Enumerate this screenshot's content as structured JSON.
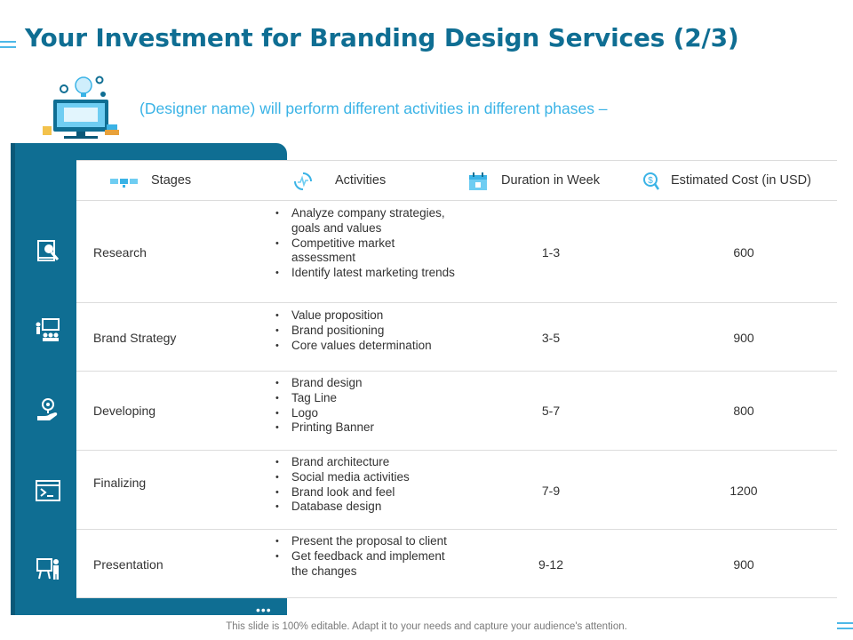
{
  "title": "Your Investment for Branding Design Services (2/3)",
  "subtitle": "(Designer name) will perform different activities in different phases –",
  "colors": {
    "primary": "#0f6e93",
    "accent": "#3ab3e6",
    "text": "#333333"
  },
  "table": {
    "headers": {
      "stages": "Stages",
      "activities": "Activities",
      "duration": "Duration in Week",
      "cost": "Estimated Cost (in USD)"
    },
    "header_icons": [
      "stages-icon",
      "activities-icon",
      "calendar-icon",
      "dollar-search-icon"
    ],
    "rows": [
      {
        "stage": "Research",
        "icon": "research-book-icon",
        "activities": [
          "Analyze company strategies, goals and values",
          "Competitive market assessment",
          "Identify latest marketing trends"
        ],
        "duration": "1-3",
        "cost": "600"
      },
      {
        "stage": "Brand Strategy",
        "icon": "strategy-board-icon",
        "activities": [
          "Value proposition",
          "Brand positioning",
          "Core values determination"
        ],
        "duration": "3-5",
        "cost": "900"
      },
      {
        "stage": "Developing",
        "icon": "hand-bulb-icon",
        "activities": [
          "Brand design",
          "Tag Line",
          "Logo",
          "Printing Banner"
        ],
        "duration": "5-7",
        "cost": "800"
      },
      {
        "stage": "Finalizing",
        "icon": "terminal-window-icon",
        "activities": [
          "Brand architecture",
          "Social media activities",
          "Brand look and feel",
          "Database design"
        ],
        "duration": "7-9",
        "cost": "1200"
      },
      {
        "stage": "Presentation",
        "icon": "presenter-icon",
        "activities": [
          "Present the proposal to client",
          "Get feedback and implement the changes"
        ],
        "duration": "9-12",
        "cost": "900"
      }
    ]
  },
  "more_indicator": "•••",
  "footer": "This slide is 100% editable. Adapt it to your needs and capture your audience's attention."
}
